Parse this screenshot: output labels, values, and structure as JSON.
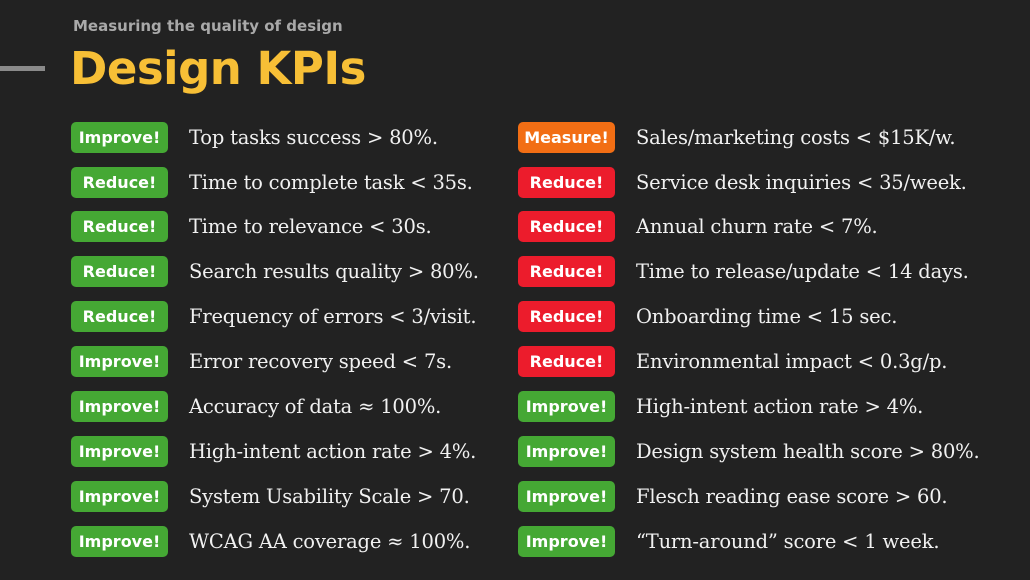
{
  "header": {
    "subtitle": "Measuring the quality of design",
    "title": "Design KPIs"
  },
  "colors": {
    "background": "#222222",
    "title": "#f7bf36",
    "improve_badge": "#45a834",
    "reduce_red_badge": "#ec1c2c",
    "measure_badge": "#f26e14",
    "text": "#f1f1f1"
  },
  "left_kpis": [
    {
      "badge": "Improve!",
      "text": "Top tasks success > 80%."
    },
    {
      "badge": "Reduce!",
      "text": "Time to complete task < 35s."
    },
    {
      "badge": "Reduce!",
      "text": "Time to relevance < 30s."
    },
    {
      "badge": "Reduce!",
      "text": "Search results quality > 80%."
    },
    {
      "badge": "Reduce!",
      "text": "Frequency of errors < 3/visit."
    },
    {
      "badge": "Improve!",
      "text": "Error recovery speed < 7s."
    },
    {
      "badge": "Improve!",
      "text": "Accuracy of data ≈ 100%."
    },
    {
      "badge": "Improve!",
      "text": "High-intent action rate > 4%."
    },
    {
      "badge": "Improve!",
      "text": "System Usability Scale > 70."
    },
    {
      "badge": "Improve!",
      "text": "WCAG AA coverage ≈ 100%."
    }
  ],
  "right_kpis": [
    {
      "badge": "Measure!",
      "text": "Sales/marketing costs < $15K/w."
    },
    {
      "badge": "Reduce!",
      "text": "Service desk inquiries < 35/week."
    },
    {
      "badge": "Reduce!",
      "text": "Annual churn rate < 7%."
    },
    {
      "badge": "Reduce!",
      "text": "Time to release/update < 14 days."
    },
    {
      "badge": "Reduce!",
      "text": "Onboarding time < 15 sec."
    },
    {
      "badge": "Reduce!",
      "text": "Environmental impact < 0.3g/p."
    },
    {
      "badge": "Improve!",
      "text": "High-intent action rate > 4%."
    },
    {
      "badge": "Improve!",
      "text": "Design system health score > 80%."
    },
    {
      "badge": "Improve!",
      "text": "Flesch reading ease score > 60."
    },
    {
      "badge": "Improve!",
      "text": "“Turn-around” score < 1 week."
    }
  ]
}
